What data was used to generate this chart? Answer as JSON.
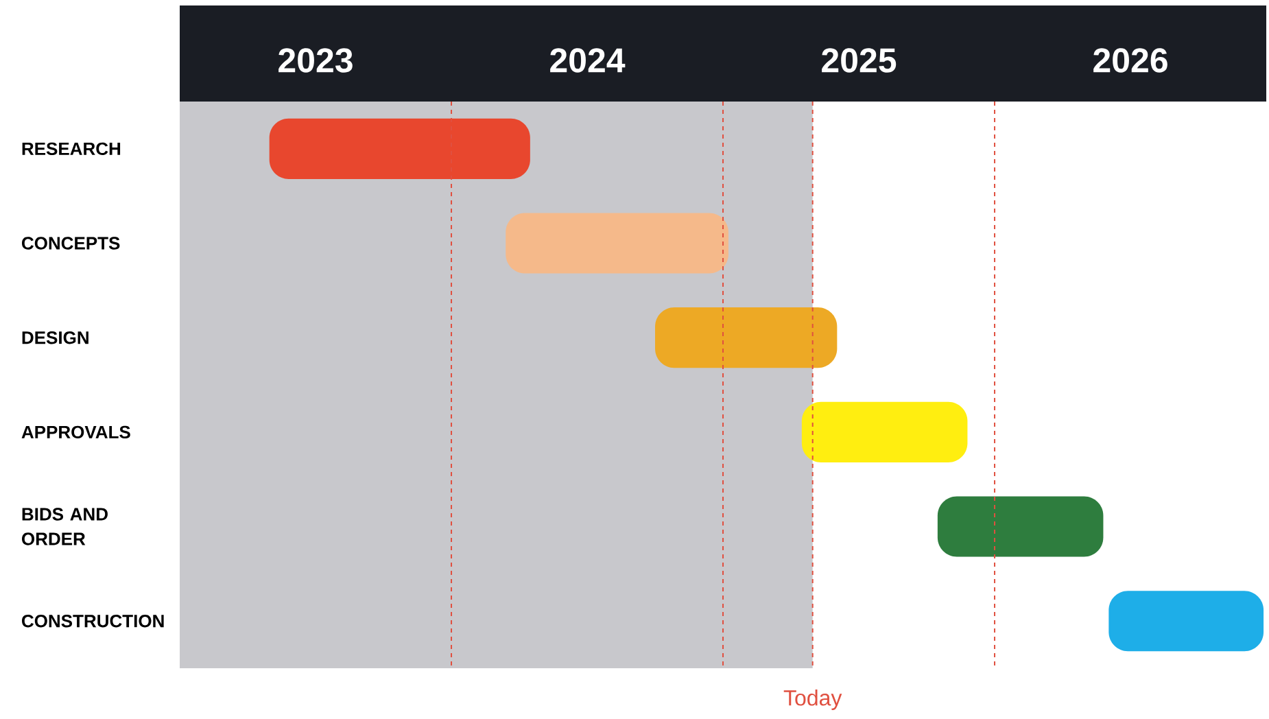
{
  "chart_data": {
    "type": "bar",
    "orientation": "horizontal",
    "categories": [
      "RESEARCH",
      "CONCEPTS",
      "DESIGN",
      "APPROVALS",
      "BIDS AND ORDER",
      "CONSTRUCTION"
    ],
    "base": [
      2023.33,
      2024.2,
      2024.75,
      2025.29,
      2025.79,
      2026.42
    ],
    "values": [
      0.96,
      0.82,
      0.67,
      0.61,
      0.61,
      0.57
    ],
    "colors": [
      "#e8472e",
      "#f5b98a",
      "#eda925",
      "#ffee10",
      "#2e7d3e",
      "#1eaee8"
    ],
    "xlim": [
      2023,
      2027
    ],
    "xticks": [
      {
        "value": 2023.5,
        "label": "2023"
      },
      {
        "value": 2024.5,
        "label": "2024"
      },
      {
        "value": 2025.5,
        "label": "2025"
      },
      {
        "value": 2026.5,
        "label": "2026"
      }
    ],
    "ref_lines": [
      {
        "axis": "x",
        "value": 2024,
        "color": "#e05040",
        "line_style": "dashed"
      },
      {
        "axis": "x",
        "value": 2025,
        "color": "#e05040",
        "line_style": "dashed"
      },
      {
        "axis": "x",
        "value": 2025.33,
        "label": "Today",
        "color": "#e05040",
        "line_style": "dashed"
      },
      {
        "axis": "x",
        "value": 2026,
        "color": "#e05040",
        "line_style": "dashed"
      }
    ],
    "bands": [
      {
        "axis": "x",
        "from": 2023,
        "to": 2025.33,
        "color": "#c8c8cc"
      }
    ]
  }
}
